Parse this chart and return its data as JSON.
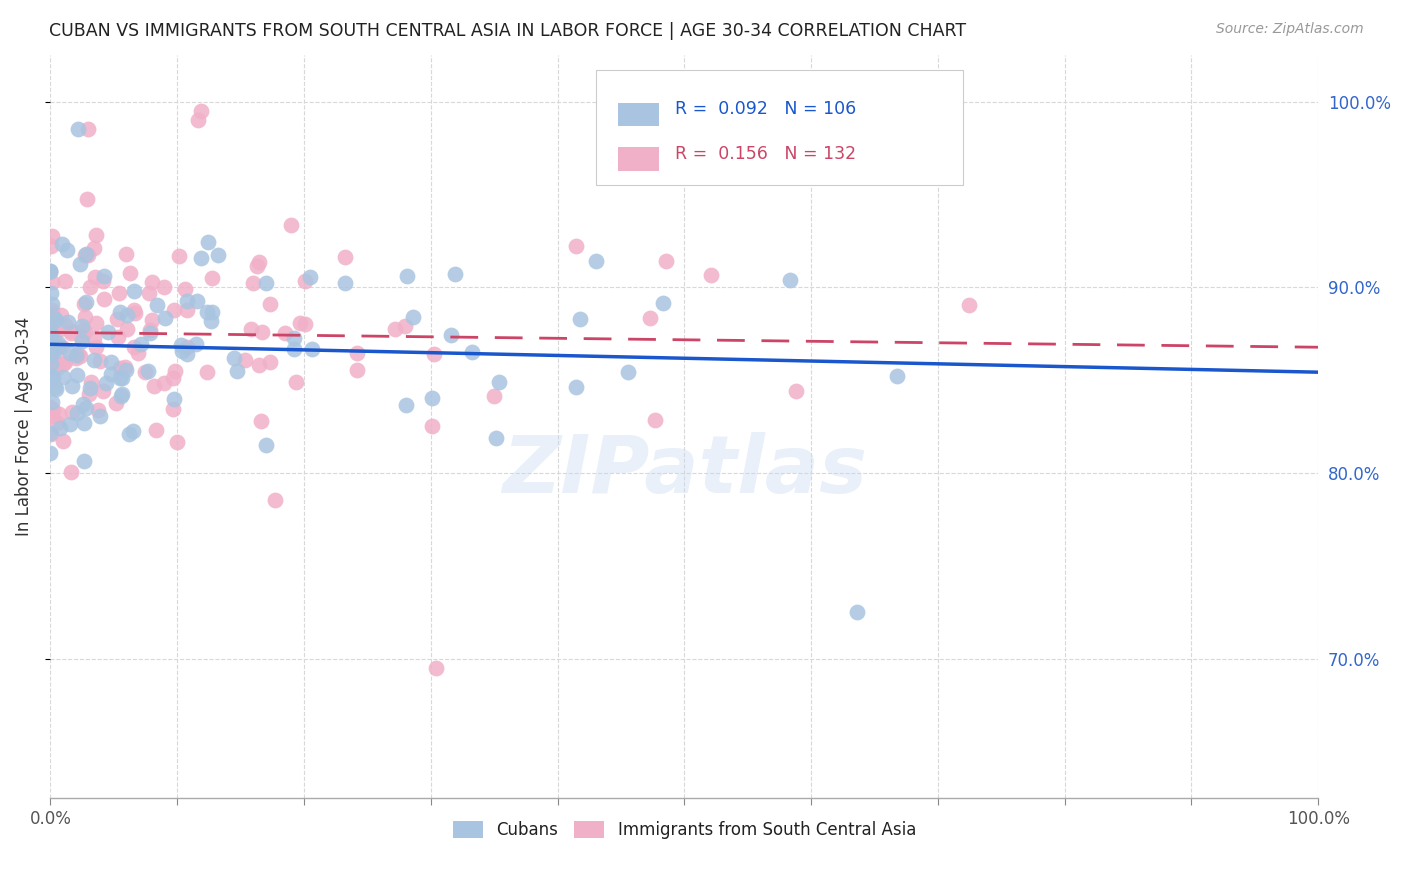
{
  "title": "CUBAN VS IMMIGRANTS FROM SOUTH CENTRAL ASIA IN LABOR FORCE | AGE 30-34 CORRELATION CHART",
  "source": "Source: ZipAtlas.com",
  "ylabel": "In Labor Force | Age 30-34",
  "legend_label_blue": "Cubans",
  "legend_label_pink": "Immigrants from South Central Asia",
  "R_blue": 0.092,
  "N_blue": 106,
  "R_pink": 0.156,
  "N_pink": 132,
  "blue_color": "#a8c4e0",
  "pink_color": "#f0b0c8",
  "trend_blue_color": "#1a56cc",
  "trend_pink_color": "#cc4466",
  "watermark": "ZIPatlas",
  "background_color": "#ffffff",
  "grid_color": "#d8d8d8",
  "xlim": [
    0.0,
    1.0
  ],
  "ylim": [
    0.625,
    1.025
  ],
  "yticks": [
    0.7,
    0.8,
    0.9,
    1.0
  ],
  "ytick_labels": [
    "70.0%",
    "80.0%",
    "90.0%",
    "100.0%"
  ],
  "xtick_positions": [
    0.0,
    0.1,
    0.2,
    0.3,
    0.4,
    0.5,
    0.6,
    0.7,
    0.8,
    0.9,
    1.0
  ],
  "xtick_labels_shown": {
    "0.0": "0.0%",
    "1.0": "100.0%"
  }
}
